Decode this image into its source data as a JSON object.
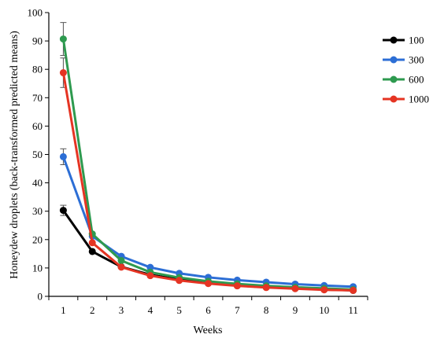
{
  "chart_data": {
    "type": "line",
    "xlabel": "Weeks",
    "ylabel": "Honeydew droplets (back-transformed predicted means)",
    "x": [
      1,
      2,
      3,
      4,
      5,
      6,
      7,
      8,
      9,
      10,
      11
    ],
    "xlim": [
      0.5,
      11.5
    ],
    "ylim": [
      0,
      100
    ],
    "yticks": [
      0,
      10,
      20,
      30,
      40,
      50,
      60,
      70,
      80,
      90,
      100
    ],
    "grid": false,
    "legend_position": "right",
    "series": [
      {
        "name": "100",
        "color": "#000000",
        "values": [
          30.3,
          15.8,
          10.4,
          7.6,
          5.9,
          4.7,
          3.8,
          3.2,
          2.8,
          2.4,
          2.1
        ],
        "error": [
          1.8,
          0,
          0,
          0,
          0,
          0,
          0,
          0,
          0,
          0,
          0
        ]
      },
      {
        "name": "300",
        "color": "#2c6ed5",
        "values": [
          49.2,
          21.2,
          14.1,
          10.2,
          8.1,
          6.7,
          5.7,
          5.0,
          4.3,
          3.8,
          3.4
        ],
        "error": [
          2.8,
          0,
          0,
          0,
          0,
          0,
          0,
          0,
          0,
          0,
          0
        ]
      },
      {
        "name": "600",
        "color": "#2e9a4f",
        "values": [
          90.7,
          22.0,
          12.6,
          8.5,
          6.6,
          5.3,
          4.4,
          3.7,
          3.2,
          2.8,
          2.4
        ],
        "error": [
          5.8,
          0,
          0,
          0,
          0,
          0,
          0,
          0,
          0,
          0,
          0
        ]
      },
      {
        "name": "1000",
        "color": "#e53423",
        "values": [
          78.8,
          18.9,
          10.3,
          7.3,
          5.6,
          4.5,
          3.7,
          3.1,
          2.7,
          2.3,
          2.1
        ],
        "error": [
          5.2,
          0,
          0,
          0,
          0,
          0,
          0,
          0,
          0,
          0,
          0
        ]
      }
    ]
  }
}
